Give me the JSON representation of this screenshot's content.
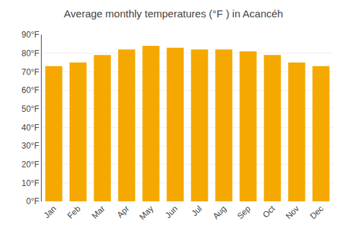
{
  "chart_data": {
    "type": "bar",
    "title": "Average monthly temperatures (°F ) in Acancéh",
    "categories": [
      "Jan",
      "Feb",
      "Mar",
      "Apr",
      "May",
      "Jun",
      "Jul",
      "Aug",
      "Sep",
      "Oct",
      "Nov",
      "Dec"
    ],
    "values": [
      73,
      75,
      79,
      82,
      84,
      83,
      82,
      82,
      81,
      79,
      75,
      73
    ],
    "color": "#F5A800",
    "ylim": [
      0,
      90
    ],
    "yticks": [
      {
        "value": 0,
        "label": "0°F"
      },
      {
        "value": 10,
        "label": "10°F"
      },
      {
        "value": 20,
        "label": "20°F"
      },
      {
        "value": 30,
        "label": "30°F"
      },
      {
        "value": 40,
        "label": "40°F"
      },
      {
        "value": 50,
        "label": "50°F"
      },
      {
        "value": 60,
        "label": "60°F"
      },
      {
        "value": 70,
        "label": "70°F"
      },
      {
        "value": 80,
        "label": "80°F"
      },
      {
        "value": 90,
        "label": "90°F"
      }
    ],
    "grid": true
  }
}
